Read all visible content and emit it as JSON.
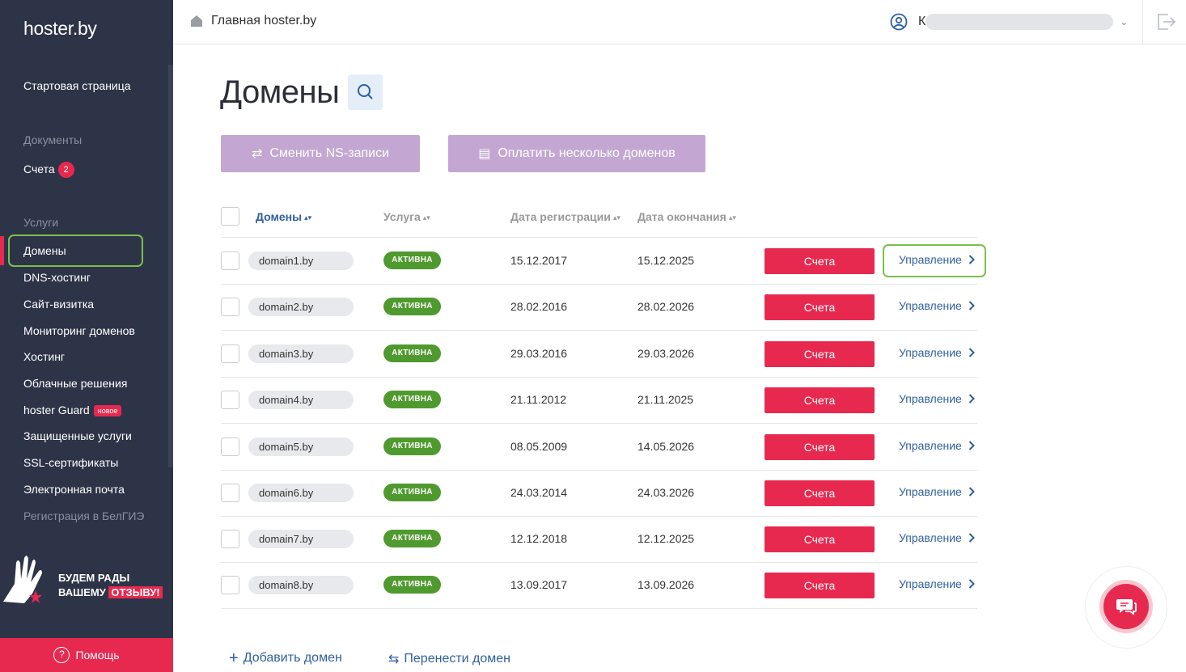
{
  "sidebar": {
    "logo": "hoster.by",
    "start_page": "Стартовая страница",
    "documents_heading": "Документы",
    "invoices": {
      "label": "Счета",
      "count": "2"
    },
    "services_heading": "Услуги",
    "items": [
      {
        "label": "Домены"
      },
      {
        "label": "DNS-хостинг"
      },
      {
        "label": "Сайт-визитка"
      },
      {
        "label": "Мониторинг доменов"
      },
      {
        "label": "Хостинг"
      },
      {
        "label": "Облачные решения"
      },
      {
        "label": "hoster Guard",
        "badge": "новое"
      },
      {
        "label": "Защищенные услуги"
      },
      {
        "label": "SSL-сертификаты"
      },
      {
        "label": "Электронная почта"
      },
      {
        "label": "Регистрация в БелГИЭ"
      }
    ],
    "feedback": {
      "line1": "БУДЕМ РАДЫ",
      "line2": "ВАШЕМУ",
      "line2_hl": "ОТЗЫВУ!"
    },
    "help": "Помощь"
  },
  "topbar": {
    "breadcrumb": "Главная hoster.by",
    "user_initial": "К"
  },
  "main": {
    "title": "Домены",
    "btn_ns": "Сменить NS-записи",
    "btn_pay": "Оплатить несколько доменов",
    "columns": {
      "domains": "Домены",
      "service": "Услуга",
      "reg_date": "Дата регистрации",
      "end_date": "Дата окончания"
    },
    "invoice_label": "Счета",
    "manage_label": "Управление",
    "rows": [
      {
        "domain": "domain1.by",
        "status": "АКТИВНА",
        "reg": "15.12.2017",
        "end": "15.12.2025"
      },
      {
        "domain": "domain2.by",
        "status": "АКТИВНА",
        "reg": "28.02.2016",
        "end": "28.02.2026"
      },
      {
        "domain": "domain3.by",
        "status": "АКТИВНА",
        "reg": "29.03.2016",
        "end": "29.03.2026"
      },
      {
        "domain": "domain4.by",
        "status": "АКТИВНА",
        "reg": "21.11.2012",
        "end": "21.11.2025"
      },
      {
        "domain": "domain5.by",
        "status": "АКТИВНА",
        "reg": "08.05.2009",
        "end": "14.05.2026"
      },
      {
        "domain": "domain6.by",
        "status": "АКТИВНА",
        "reg": "24.03.2014",
        "end": "24.03.2026"
      },
      {
        "domain": "domain7.by",
        "status": "АКТИВНА",
        "reg": "12.12.2018",
        "end": "12.12.2025"
      },
      {
        "domain": "domain8.by",
        "status": "АКТИВНА",
        "reg": "13.09.2017",
        "end": "13.09.2026"
      }
    ],
    "add_domain": "Добавить домен",
    "transfer_domain": "Перенести домен"
  },
  "colors": {
    "accent": "#e8294f",
    "sidebar_bg": "#2e3447",
    "link": "#2f5f9e",
    "status_green": "#4f9a2e",
    "highlight_frame": "#7cc04b",
    "action_button": "#c3a7d2"
  }
}
